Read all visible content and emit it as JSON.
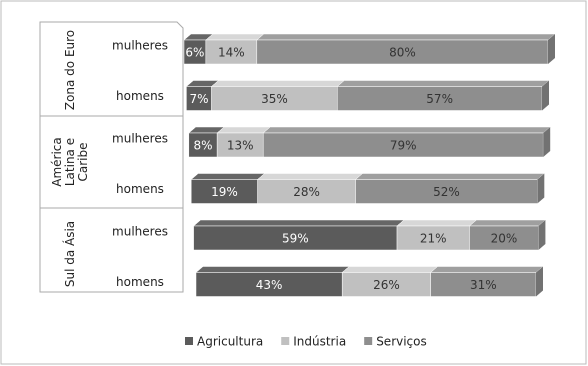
{
  "chart_data": {
    "type": "bar3d_stacked",
    "groups": [
      "Zona do Euro",
      "América Latina e Caribe",
      "Sul da Ásia"
    ],
    "categories": [
      "mulheres",
      "homens",
      "mulheres",
      "homens",
      "mulheres",
      "homens"
    ],
    "xlim": [
      0,
      100
    ],
    "legend": "bottom",
    "series": [
      {
        "name": "Agricultura",
        "color": "#5b5b5b",
        "values": [
          6,
          7,
          8,
          19,
          59,
          43
        ],
        "value_labels": [
          "6%",
          "7%",
          "8%",
          "19%",
          "59%",
          "43%"
        ]
      },
      {
        "name": "Indústria",
        "color": "#c0c0c0",
        "values": [
          14,
          35,
          13,
          28,
          21,
          26
        ],
        "value_labels": [
          "14%",
          "35%",
          "13%",
          "28%",
          "21%",
          "26%"
        ]
      },
      {
        "name": "Serviços",
        "color": "#8e8e8e",
        "values": [
          80,
          57,
          79,
          52,
          20,
          31
        ],
        "value_labels": [
          "80%",
          "57%",
          "79%",
          "52%",
          "20%",
          "31%"
        ]
      }
    ]
  }
}
